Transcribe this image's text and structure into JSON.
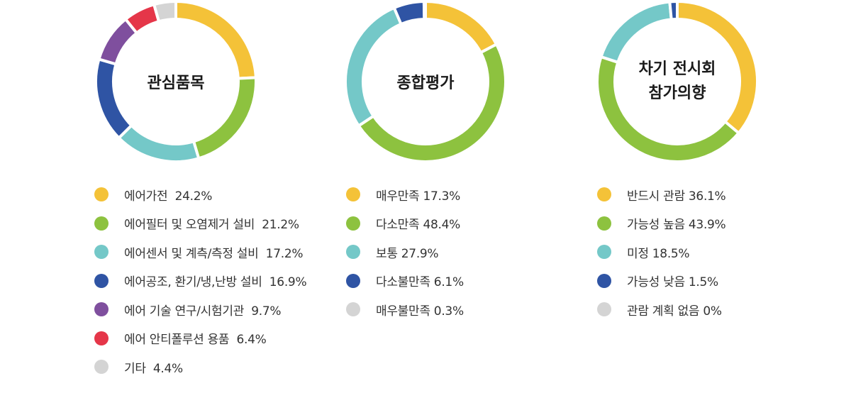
{
  "chart_data": [
    {
      "type": "pie",
      "title": "관심품목",
      "categories": [
        "에어가전",
        "에어필터 및 오염제거 설비",
        "에어센서 및 계측/측정 설비",
        "에어공조, 환기/냉,난방 설비",
        "에어 기술 연구/시험기관",
        "에어 안티폴루션 용품",
        "기타"
      ],
      "values": [
        24.2,
        21.2,
        17.2,
        16.9,
        9.7,
        6.4,
        4.4
      ],
      "colors": [
        "#F4C238",
        "#8DC23F",
        "#74C8C8",
        "#2F54A4",
        "#7F4F9E",
        "#E53649",
        "#D4D4D4"
      ],
      "legend_labels": [
        "에어가전  24.2%",
        "에어필터 및 오염제거 설비  21.2%",
        "에어센서 및 계측/측정 설비  17.2%",
        "에어공조, 환기/냉,난방 설비  16.9%",
        "에어 기술 연구/시험기관  9.7%",
        "에어 안티폴루션 용품  6.4%",
        "기타  4.4%"
      ]
    },
    {
      "type": "pie",
      "title": "종합평가",
      "categories": [
        "매우만족",
        "다소만족",
        "보통",
        "다소불만족",
        "매우불만족"
      ],
      "values": [
        17.3,
        48.4,
        27.9,
        6.1,
        0.3
      ],
      "colors": [
        "#F4C238",
        "#8DC23F",
        "#74C8C8",
        "#2F54A4",
        "#D4D4D4"
      ],
      "legend_labels": [
        "매우만족 17.3%",
        "다소만족 48.4%",
        "보통 27.9%",
        "다소불만족 6.1%",
        "매우불만족 0.3%"
      ]
    },
    {
      "type": "pie",
      "title": "차기 전시회\n참가의향",
      "categories": [
        "반드시 관람",
        "가능성 높음",
        "미정",
        "가능성 낮음",
        "관람 계획 없음"
      ],
      "values": [
        36.1,
        43.9,
        18.5,
        1.5,
        0
      ],
      "colors": [
        "#F4C238",
        "#8DC23F",
        "#74C8C8",
        "#2F54A4",
        "#D4D4D4"
      ],
      "legend_labels": [
        "반드시 관람 36.1%",
        "가능성 높음 43.9%",
        "미정 18.5%",
        "가능성 낮음 1.5%",
        "관람 계획 없음 0%"
      ]
    }
  ]
}
